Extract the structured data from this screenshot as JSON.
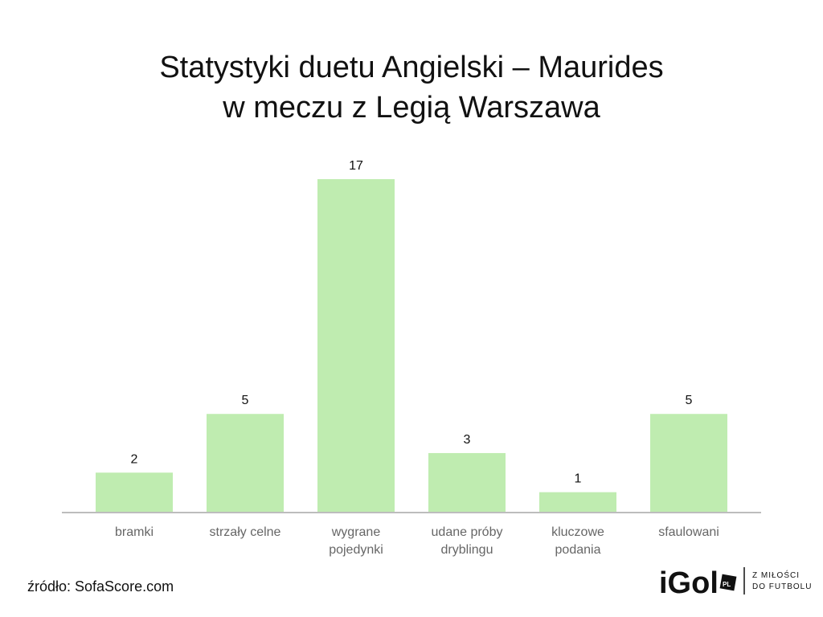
{
  "chart_data": {
    "type": "bar",
    "title_line1": "Statystyki duetu Angielski – Maurides",
    "title_line2": "w meczu z Legią Warszawa",
    "categories": [
      [
        "bramki"
      ],
      [
        "strzały celne"
      ],
      [
        "wygrane",
        "pojedynki"
      ],
      [
        "udane próby",
        "dryblingu"
      ],
      [
        "kluczowe",
        "podania"
      ],
      [
        "sfaulowani"
      ]
    ],
    "values": [
      2,
      5,
      17,
      3,
      1,
      5
    ],
    "ylim": [
      0,
      17
    ],
    "bar_color": "#bfecb0",
    "axis_color": "#bdbdbd",
    "label_color": "#666666",
    "grid": false
  },
  "source": "źródło: SofaScore.com",
  "logo": {
    "name": "iGol",
    "badge": "PL",
    "tagline_line1": "Z MIŁOŚCI",
    "tagline_line2": "DO FUTBOLU"
  }
}
